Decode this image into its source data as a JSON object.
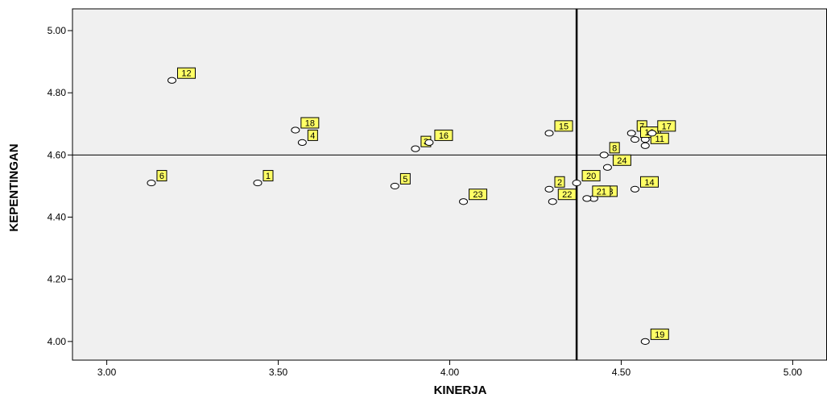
{
  "chart_data": {
    "type": "scatter",
    "xlabel": "KINERJA",
    "ylabel": "KEPENTINGAN",
    "xlim": [
      2.9,
      5.1
    ],
    "ylim": [
      3.94,
      5.07
    ],
    "x_ticks": [
      "3.00",
      "3.50",
      "4.00",
      "4.50",
      "5.00"
    ],
    "x_tick_values": [
      3.0,
      3.5,
      4.0,
      4.5,
      5.0
    ],
    "y_ticks": [
      "5.00",
      "4.80",
      "4.60",
      "4.40",
      "4.20",
      "4.00"
    ],
    "y_tick_values": [
      5.0,
      4.8,
      4.6,
      4.4,
      4.2,
      4.0
    ],
    "reference_lines": {
      "x": 4.37,
      "y": 4.6
    },
    "grid": false,
    "colors": {
      "plot_background": "#f0f0f0",
      "marker_fill": "#ffffff",
      "label_fill": "#ffff66",
      "stroke": "#000000"
    },
    "points": [
      {
        "label": "1",
        "x": 3.44,
        "y": 4.51
      },
      {
        "label": "2",
        "x": 4.29,
        "y": 4.49
      },
      {
        "label": "3",
        "x": 3.9,
        "y": 4.62
      },
      {
        "label": "4",
        "x": 3.57,
        "y": 4.64
      },
      {
        "label": "5",
        "x": 3.84,
        "y": 4.5
      },
      {
        "label": "6",
        "x": 3.13,
        "y": 4.51
      },
      {
        "label": "7",
        "x": 4.53,
        "y": 4.67
      },
      {
        "label": "8",
        "x": 4.45,
        "y": 4.6
      },
      {
        "label": "9",
        "x": 4.57,
        "y": 4.65
      },
      {
        "label": "10",
        "x": 4.54,
        "y": 4.65
      },
      {
        "label": "11",
        "x": 4.57,
        "y": 4.63
      },
      {
        "label": "12",
        "x": 3.19,
        "y": 4.84
      },
      {
        "label": "13",
        "x": 4.42,
        "y": 4.46
      },
      {
        "label": "14",
        "x": 4.54,
        "y": 4.49
      },
      {
        "label": "15",
        "x": 4.29,
        "y": 4.67
      },
      {
        "label": "16",
        "x": 3.94,
        "y": 4.64
      },
      {
        "label": "17",
        "x": 4.59,
        "y": 4.67
      },
      {
        "label": "18",
        "x": 3.55,
        "y": 4.68
      },
      {
        "label": "19",
        "x": 4.57,
        "y": 4.0
      },
      {
        "label": "20",
        "x": 4.37,
        "y": 4.51
      },
      {
        "label": "21",
        "x": 4.4,
        "y": 4.46
      },
      {
        "label": "22",
        "x": 4.3,
        "y": 4.45
      },
      {
        "label": "23",
        "x": 4.04,
        "y": 4.45
      },
      {
        "label": "24",
        "x": 4.46,
        "y": 4.56
      }
    ]
  }
}
